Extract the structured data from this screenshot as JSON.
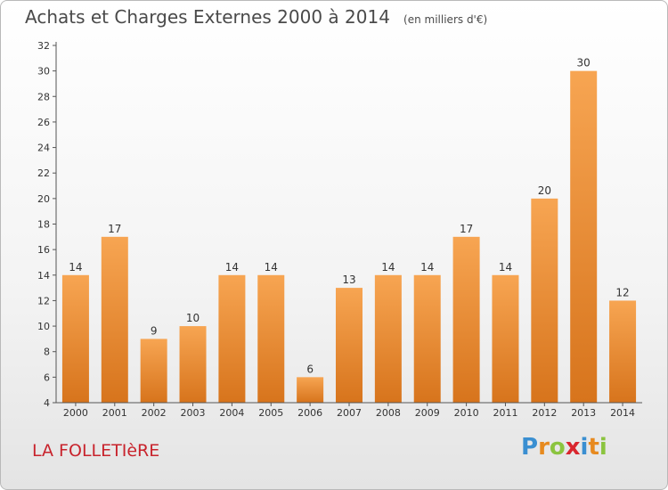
{
  "title": "Achats et Charges Externes 2000 à 2014",
  "unit": "(en milliers d'€)",
  "commune": "LA FOLLETIèRE",
  "logo": {
    "letters": [
      "P",
      "r",
      "o",
      "x",
      "i",
      "t",
      "i"
    ],
    "colors": [
      "#3a8fd1",
      "#e78a1f",
      "#8bc43f",
      "#d9262e",
      "#3a8fd1",
      "#e78a1f",
      "#8bc43f"
    ]
  },
  "colors": {
    "bar_top": "#f7a552",
    "bar_bottom": "#d7741c",
    "axis": "#555555"
  },
  "chart_data": {
    "type": "bar",
    "categories": [
      "2000",
      "2001",
      "2002",
      "2003",
      "2004",
      "2005",
      "2006",
      "2007",
      "2008",
      "2009",
      "2010",
      "2011",
      "2012",
      "2013",
      "2014"
    ],
    "values": [
      14,
      17,
      9,
      10,
      14,
      14,
      6,
      13,
      14,
      14,
      17,
      14,
      20,
      30,
      12
    ],
    "ylim": [
      4,
      32
    ],
    "yticks": [
      4,
      6,
      8,
      10,
      12,
      14,
      16,
      18,
      20,
      22,
      24,
      26,
      28,
      30,
      32
    ],
    "grid": false,
    "data_labels": true
  }
}
